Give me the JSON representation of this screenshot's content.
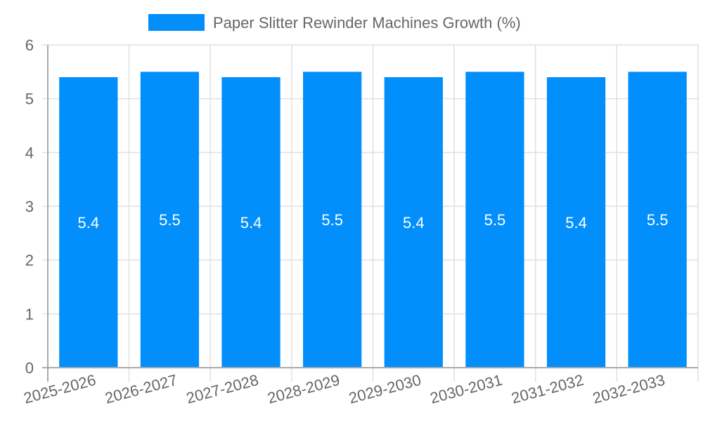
{
  "chart_data": {
    "type": "bar",
    "title": "",
    "legend": [
      {
        "label": "Paper Slitter Rewinder Machines Growth (%)",
        "color": "#038ffb"
      }
    ],
    "legend_position": "top",
    "categories": [
      "2025-2026",
      "2026-2027",
      "2027-2028",
      "2028-2029",
      "2029-2030",
      "2030-2031",
      "2031-2032",
      "2032-2033"
    ],
    "series": [
      {
        "name": "Paper Slitter Rewinder Machines Growth (%)",
        "values": [
          5.4,
          5.5,
          5.4,
          5.5,
          5.4,
          5.5,
          5.4,
          5.5
        ],
        "color": "#038ffb"
      }
    ],
    "data_labels": [
      "5.4",
      "5.5",
      "5.4",
      "5.5",
      "5.4",
      "5.5",
      "5.4",
      "5.5"
    ],
    "xlabel": "",
    "ylabel": "",
    "ylim": [
      0,
      6
    ],
    "yticks": [
      "0",
      "1",
      "2",
      "3",
      "4",
      "5",
      "6"
    ],
    "grid": true
  }
}
